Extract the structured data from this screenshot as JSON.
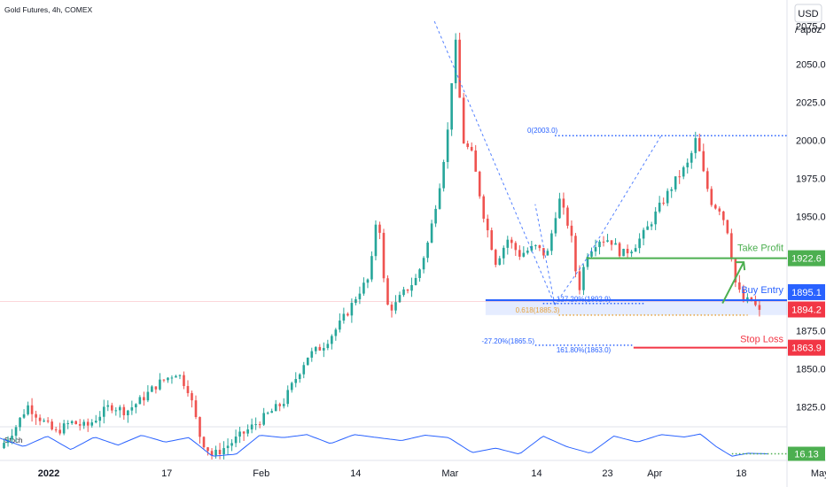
{
  "chart_data": {
    "type": "candlestick",
    "title": "Gold Futures, 4h, COMEX",
    "currency": "USD",
    "unit_label": "/ apoz",
    "indicator_label": "Stoch",
    "ylim": [
      1812,
      2092
    ],
    "y_ticks": [
      "2075.0",
      "2050.0",
      "2025.0",
      "2000.0",
      "1975.0",
      "1950.0",
      "1875.0",
      "1850.0",
      "1825.0"
    ],
    "x_ticks": [
      {
        "label": "2022",
        "bold": true,
        "pos": 0.0
      },
      {
        "label": "17",
        "bold": false,
        "pos": 0.15
      },
      {
        "label": "Feb",
        "bold": false,
        "pos": 0.27
      },
      {
        "label": "14",
        "bold": false,
        "pos": 0.39
      },
      {
        "label": "Mar",
        "bold": false,
        "pos": 0.51
      },
      {
        "label": "14",
        "bold": false,
        "pos": 0.62
      },
      {
        "label": "23",
        "bold": false,
        "pos": 0.71
      },
      {
        "label": "Apr",
        "bold": false,
        "pos": 0.77
      },
      {
        "label": "18",
        "bold": false,
        "pos": 0.88
      },
      {
        "label": "May",
        "bold": false,
        "pos": 0.98
      }
    ],
    "price_path": [
      {
        "t": 0.0,
        "p": 1798
      },
      {
        "t": 0.02,
        "p": 1812
      },
      {
        "t": 0.035,
        "p": 1826
      },
      {
        "t": 0.05,
        "p": 1818
      },
      {
        "t": 0.07,
        "p": 1808
      },
      {
        "t": 0.09,
        "p": 1815
      },
      {
        "t": 0.11,
        "p": 1812
      },
      {
        "t": 0.14,
        "p": 1826
      },
      {
        "t": 0.16,
        "p": 1822
      },
      {
        "t": 0.18,
        "p": 1830
      },
      {
        "t": 0.2,
        "p": 1840
      },
      {
        "t": 0.225,
        "p": 1848
      },
      {
        "t": 0.24,
        "p": 1836
      },
      {
        "t": 0.255,
        "p": 1804
      },
      {
        "t": 0.27,
        "p": 1793
      },
      {
        "t": 0.29,
        "p": 1800
      },
      {
        "t": 0.31,
        "p": 1808
      },
      {
        "t": 0.33,
        "p": 1816
      },
      {
        "t": 0.36,
        "p": 1828
      },
      {
        "t": 0.37,
        "p": 1838
      },
      {
        "t": 0.39,
        "p": 1858
      },
      {
        "t": 0.41,
        "p": 1865
      },
      {
        "t": 0.43,
        "p": 1878
      },
      {
        "t": 0.445,
        "p": 1890
      },
      {
        "t": 0.455,
        "p": 1900
      },
      {
        "t": 0.47,
        "p": 1910
      },
      {
        "t": 0.48,
        "p": 1958
      },
      {
        "t": 0.49,
        "p": 1892
      },
      {
        "t": 0.5,
        "p": 1890
      },
      {
        "t": 0.51,
        "p": 1898
      },
      {
        "t": 0.53,
        "p": 1910
      },
      {
        "t": 0.545,
        "p": 1935
      },
      {
        "t": 0.56,
        "p": 1975
      },
      {
        "t": 0.57,
        "p": 2010
      },
      {
        "t": 0.578,
        "p": 2070
      },
      {
        "t": 0.588,
        "p": 2000
      },
      {
        "t": 0.6,
        "p": 1990
      },
      {
        "t": 0.615,
        "p": 1950
      },
      {
        "t": 0.63,
        "p": 1920
      },
      {
        "t": 0.645,
        "p": 1935
      },
      {
        "t": 0.66,
        "p": 1925
      },
      {
        "t": 0.68,
        "p": 1930
      },
      {
        "t": 0.695,
        "p": 1924
      },
      {
        "t": 0.71,
        "p": 1962
      },
      {
        "t": 0.725,
        "p": 1940
      },
      {
        "t": 0.735,
        "p": 1900
      },
      {
        "t": 0.745,
        "p": 1925
      },
      {
        "t": 0.76,
        "p": 1935
      },
      {
        "t": 0.775,
        "p": 1935
      },
      {
        "t": 0.79,
        "p": 1925
      },
      {
        "t": 0.805,
        "p": 1930
      },
      {
        "t": 0.82,
        "p": 1940
      },
      {
        "t": 0.84,
        "p": 1958
      },
      {
        "t": 0.86,
        "p": 1975
      },
      {
        "t": 0.875,
        "p": 1985
      },
      {
        "t": 0.885,
        "p": 2002
      },
      {
        "t": 0.895,
        "p": 1975
      },
      {
        "t": 0.905,
        "p": 1958
      },
      {
        "t": 0.915,
        "p": 1955
      },
      {
        "t": 0.925,
        "p": 1940
      },
      {
        "t": 0.935,
        "p": 1905
      },
      {
        "t": 0.945,
        "p": 1894
      },
      {
        "t": 0.955,
        "p": 1895
      },
      {
        "t": 0.965,
        "p": 1887
      }
    ],
    "levels": [
      {
        "name": "Take Profit",
        "value": "1922.6",
        "color": "#4caf50"
      },
      {
        "name": "Buy Entry",
        "value": "1895.1",
        "color": "#2962ff"
      },
      {
        "name": "Stop Loss",
        "value": "1863.9",
        "color": "#f23645"
      }
    ],
    "last_price": {
      "value": "1894.2",
      "color": "#f23645"
    },
    "fib_labels": [
      {
        "text": "0(2003.0)",
        "color": "#2962ff"
      },
      {
        "text": "127.20%(1892.9)",
        "color": "#2962ff"
      },
      {
        "text": "0.618(1885.3)",
        "color": "#e6a23c"
      },
      {
        "text": "-27.20%(1865.5)",
        "color": "#2962ff"
      },
      {
        "text": "161.80%(1863.0)",
        "color": "#2962ff"
      }
    ],
    "stoch": {
      "value": "16.13",
      "ylim": [
        0,
        100
      ],
      "path": [
        {
          "t": 0.0,
          "v": 68
        },
        {
          "t": 0.03,
          "v": 40
        },
        {
          "t": 0.06,
          "v": 75
        },
        {
          "t": 0.09,
          "v": 30
        },
        {
          "t": 0.12,
          "v": 72
        },
        {
          "t": 0.15,
          "v": 45
        },
        {
          "t": 0.18,
          "v": 78
        },
        {
          "t": 0.21,
          "v": 55
        },
        {
          "t": 0.24,
          "v": 70
        },
        {
          "t": 0.27,
          "v": 8
        },
        {
          "t": 0.3,
          "v": 15
        },
        {
          "t": 0.33,
          "v": 78
        },
        {
          "t": 0.36,
          "v": 70
        },
        {
          "t": 0.39,
          "v": 80
        },
        {
          "t": 0.42,
          "v": 50
        },
        {
          "t": 0.45,
          "v": 80
        },
        {
          "t": 0.48,
          "v": 70
        },
        {
          "t": 0.51,
          "v": 60
        },
        {
          "t": 0.54,
          "v": 78
        },
        {
          "t": 0.57,
          "v": 70
        },
        {
          "t": 0.6,
          "v": 20
        },
        {
          "t": 0.63,
          "v": 35
        },
        {
          "t": 0.66,
          "v": 15
        },
        {
          "t": 0.69,
          "v": 75
        },
        {
          "t": 0.72,
          "v": 40
        },
        {
          "t": 0.75,
          "v": 18
        },
        {
          "t": 0.78,
          "v": 75
        },
        {
          "t": 0.81,
          "v": 55
        },
        {
          "t": 0.84,
          "v": 80
        },
        {
          "t": 0.87,
          "v": 72
        },
        {
          "t": 0.89,
          "v": 82
        },
        {
          "t": 0.91,
          "v": 40
        },
        {
          "t": 0.93,
          "v": 8
        },
        {
          "t": 0.95,
          "v": 18
        },
        {
          "t": 0.975,
          "v": 16
        }
      ]
    }
  }
}
